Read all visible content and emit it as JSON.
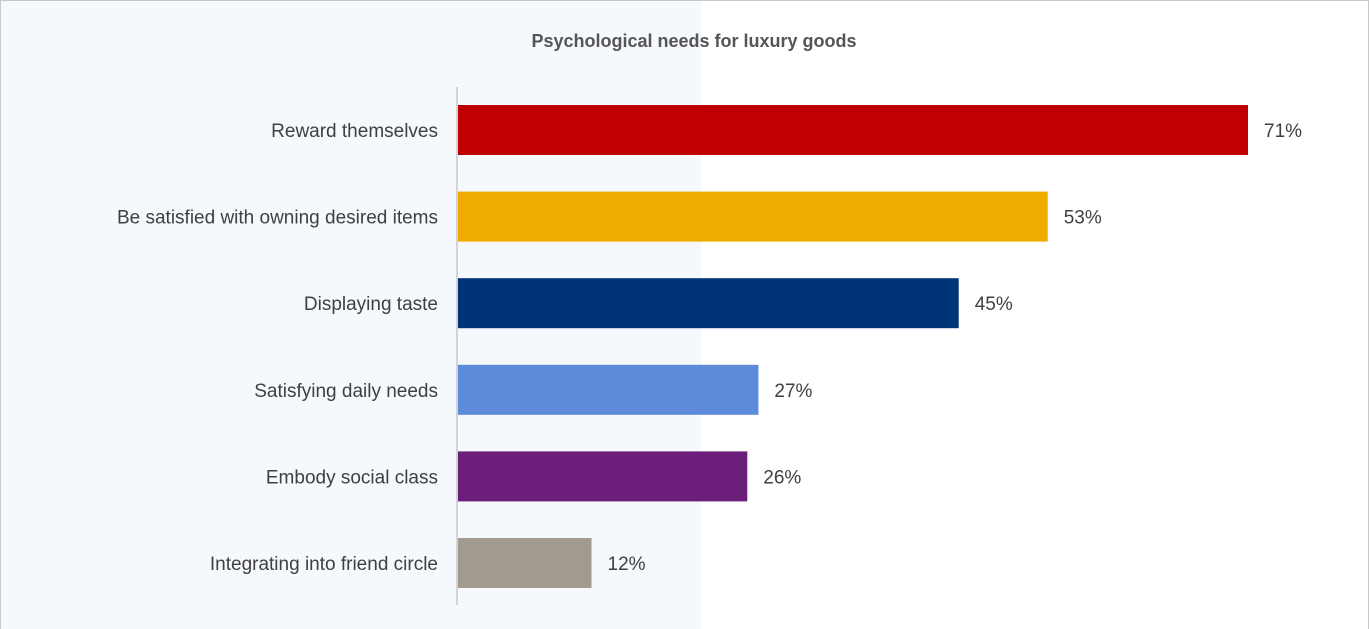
{
  "chart_data": {
    "type": "bar",
    "orientation": "horizontal",
    "title": "Psychological needs for luxury goods",
    "categories": [
      "Reward themselves",
      "Be satisfied with owning desired items",
      "Displaying taste",
      "Satisfying daily needs",
      "Embody social class",
      "Integrating into friend circle"
    ],
    "values": [
      71,
      53,
      45,
      27,
      26,
      12
    ],
    "value_labels": [
      "71%",
      "53%",
      "45%",
      "27%",
      "26%",
      "12%"
    ],
    "colors": [
      "#c00000",
      "#f0ab00",
      "#003478",
      "#5b8bd9",
      "#6b1f7b",
      "#a39a8f"
    ],
    "xlabel": "",
    "ylabel": "",
    "xlim": [
      0,
      100
    ],
    "grid": false,
    "legend": "none"
  }
}
